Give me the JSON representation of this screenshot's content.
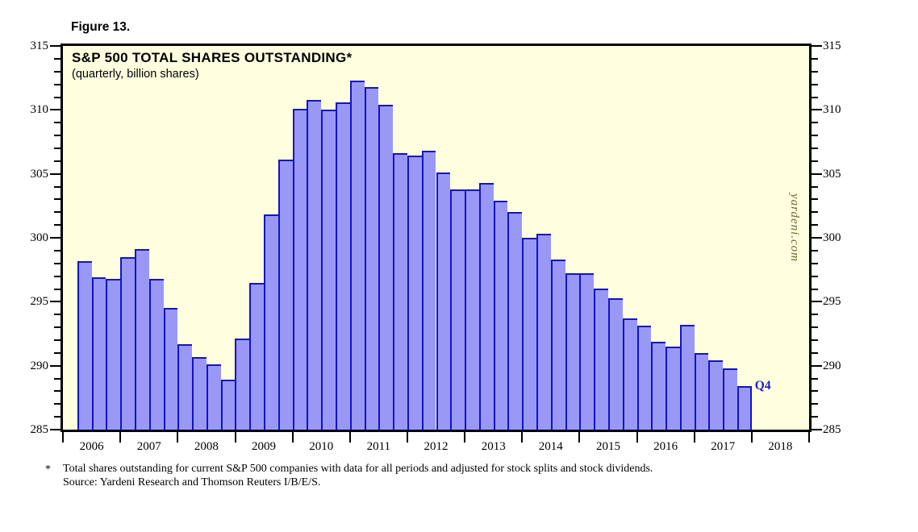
{
  "page": {
    "figure_label": "Figure 13."
  },
  "chart_data": {
    "type": "bar",
    "title": "S&P 500 TOTAL SHARES OUTSTANDING*",
    "subtitle": "(quarterly, billion shares)",
    "x": [
      "2006 Q2",
      "2006 Q3",
      "2006 Q4",
      "2007 Q1",
      "2007 Q2",
      "2007 Q3",
      "2007 Q4",
      "2008 Q1",
      "2008 Q2",
      "2008 Q3",
      "2008 Q4",
      "2009 Q1",
      "2009 Q2",
      "2009 Q3",
      "2009 Q4",
      "2010 Q1",
      "2010 Q2",
      "2010 Q3",
      "2010 Q4",
      "2011 Q1",
      "2011 Q2",
      "2011 Q3",
      "2011 Q4",
      "2012 Q1",
      "2012 Q2",
      "2012 Q3",
      "2012 Q4",
      "2013 Q1",
      "2013 Q2",
      "2013 Q3",
      "2013 Q4",
      "2014 Q1",
      "2014 Q2",
      "2014 Q3",
      "2014 Q4",
      "2015 Q1",
      "2015 Q2",
      "2015 Q3",
      "2015 Q4",
      "2016 Q1",
      "2016 Q2",
      "2016 Q3",
      "2016 Q4",
      "2017 Q1",
      "2017 Q2",
      "2017 Q3",
      "2017 Q4"
    ],
    "values": [
      298.2,
      296.9,
      296.8,
      298.5,
      299.1,
      296.8,
      294.5,
      291.7,
      290.7,
      290.1,
      288.9,
      292.1,
      296.5,
      301.8,
      306.1,
      310.1,
      310.8,
      310.0,
      310.6,
      312.3,
      311.8,
      310.4,
      306.6,
      306.4,
      306.8,
      305.1,
      303.8,
      303.8,
      304.3,
      302.9,
      302.0,
      300.0,
      300.3,
      298.3,
      297.2,
      297.2,
      296.0,
      295.3,
      293.7,
      293.1,
      291.9,
      291.5,
      293.2,
      291.0,
      290.4,
      289.8,
      288.4
    ],
    "ylim": [
      285,
      315
    ],
    "y_axis": {
      "min": 285,
      "max": 315,
      "major_step": 5,
      "minor_step": 1,
      "tick_labels": [
        "285",
        "290",
        "295",
        "300",
        "305",
        "310",
        "315"
      ],
      "labels_both_sides": true
    },
    "x_axis": {
      "year_start": 2006,
      "year_end": 2018,
      "labels": [
        "2006",
        "2007",
        "2008",
        "2009",
        "2010",
        "2011",
        "2012",
        "2013",
        "2014",
        "2015",
        "2016",
        "2017",
        "2018"
      ]
    },
    "annotations": {
      "last_point_label": "Q4"
    },
    "watermark": "yardeni.com",
    "grid": false,
    "legend": null,
    "colors": {
      "bar_fill": "#9999F5",
      "bar_border": "#1212CC",
      "plot_bg": "#FFFFE0",
      "axis": "#000000",
      "annotation": "#2222CC",
      "watermark": "#6B682F"
    }
  },
  "footnote": {
    "marker": "*",
    "line1": "Total shares outstanding for current S&P 500 companies with data for all periods and adjusted for stock splits and stock dividends.",
    "line2": "Source: Yardeni Research and Thomson Reuters I/B/E/S."
  }
}
